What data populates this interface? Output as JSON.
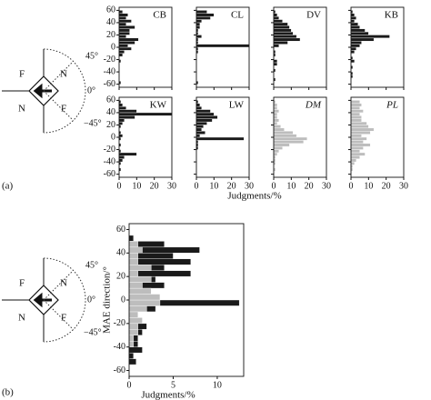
{
  "panel_labels": [
    "(a)",
    "(b)"
  ],
  "shared_xlabel": "Judgments/%",
  "diagrams": [
    {
      "labels": [
        "F",
        "N",
        "N",
        "F"
      ],
      "angles": [
        "45°",
        "0°",
        "−45°"
      ]
    },
    {
      "labels": [
        "F",
        "N",
        "N",
        "F"
      ],
      "angles": [
        "45°",
        "0°",
        "−45°"
      ]
    }
  ],
  "chart_data": [
    {
      "type": "histogram",
      "title": "CB",
      "title_italic": false,
      "color": "#1a1a1a",
      "show_yticklabels": true,
      "show_xticklabels": false,
      "bins": [
        -60,
        -55,
        -50,
        -45,
        -40,
        -35,
        -30,
        -25,
        -20,
        -15,
        -10,
        -5,
        0,
        5,
        10,
        15,
        20,
        25,
        30,
        35,
        40,
        45,
        50,
        55,
        60
      ],
      "values": [
        1,
        0,
        0,
        0,
        0,
        0,
        0,
        1,
        0,
        2,
        3,
        7,
        5,
        9,
        11,
        4,
        6,
        6,
        9,
        4,
        7,
        4,
        5,
        2
      ],
      "xlim": [
        0,
        30
      ],
      "xticks": [
        0,
        10,
        20,
        30
      ],
      "ylim": [
        -65,
        65
      ],
      "yticks": [
        60,
        40,
        20,
        0,
        -20,
        -40,
        -60
      ]
    },
    {
      "type": "histogram",
      "title": "CL",
      "title_italic": false,
      "color": "#1a1a1a",
      "show_yticklabels": false,
      "show_xticklabels": false,
      "bins": [
        -60,
        -55,
        -50,
        -45,
        -40,
        -35,
        -30,
        -25,
        -20,
        -15,
        -10,
        -5,
        0,
        5,
        10,
        15,
        20,
        25,
        30,
        35,
        40,
        45,
        50,
        55,
        60
      ],
      "values": [
        1,
        0,
        0,
        0,
        0,
        0,
        0,
        0,
        0,
        0,
        1,
        1,
        30,
        1,
        1,
        3,
        1,
        1,
        2,
        2,
        3,
        8,
        10,
        6
      ],
      "xlim": [
        0,
        30
      ],
      "xticks": [
        0,
        10,
        20,
        30
      ],
      "ylim": [
        -65,
        65
      ],
      "yticks": [
        60,
        40,
        20,
        0,
        -20,
        -40,
        -60
      ]
    },
    {
      "type": "histogram",
      "title": "DV",
      "title_italic": false,
      "color": "#1a1a1a",
      "show_yticklabels": false,
      "show_xticklabels": false,
      "bins": [
        -60,
        -55,
        -50,
        -45,
        -40,
        -35,
        -30,
        -25,
        -20,
        -15,
        -10,
        -5,
        0,
        5,
        10,
        15,
        20,
        25,
        30,
        35,
        40,
        45,
        50,
        55,
        60
      ],
      "values": [
        0,
        1,
        0,
        0,
        1,
        0,
        2,
        2,
        0,
        1,
        1,
        0,
        3,
        8,
        15,
        13,
        11,
        10,
        9,
        8,
        5,
        3,
        2,
        1
      ],
      "xlim": [
        0,
        30
      ],
      "xticks": [
        0,
        10,
        20,
        30
      ],
      "ylim": [
        -65,
        65
      ],
      "yticks": [
        60,
        40,
        20,
        0,
        -20,
        -40,
        -60
      ]
    },
    {
      "type": "histogram",
      "title": "KB",
      "title_italic": false,
      "color": "#1a1a1a",
      "show_yticklabels": false,
      "show_xticklabels": false,
      "bins": [
        -60,
        -55,
        -50,
        -45,
        -40,
        -35,
        -30,
        -25,
        -20,
        -15,
        -10,
        -5,
        0,
        5,
        10,
        15,
        20,
        25,
        30,
        35,
        40,
        45,
        50,
        55,
        60
      ],
      "values": [
        0,
        0,
        1,
        1,
        0,
        1,
        0,
        2,
        1,
        0,
        2,
        3,
        5,
        6,
        13,
        22,
        10,
        8,
        5,
        4,
        2,
        3,
        2,
        1
      ],
      "xlim": [
        0,
        30
      ],
      "xticks": [
        0,
        10,
        20,
        30
      ],
      "ylim": [
        -65,
        65
      ],
      "yticks": [
        60,
        40,
        20,
        0,
        -20,
        -40,
        -60
      ]
    },
    {
      "type": "histogram",
      "title": "KW",
      "title_italic": false,
      "color": "#1a1a1a",
      "show_yticklabels": true,
      "show_xticklabels": true,
      "bins": [
        -60,
        -55,
        -50,
        -45,
        -40,
        -35,
        -30,
        -25,
        -20,
        -15,
        -10,
        -5,
        0,
        5,
        10,
        15,
        20,
        25,
        30,
        35,
        40,
        45,
        50,
        55,
        60
      ],
      "values": [
        0,
        1,
        0,
        1,
        2,
        3,
        10,
        1,
        0,
        1,
        0,
        1,
        2,
        1,
        0,
        1,
        2,
        3,
        9,
        30,
        10,
        4,
        2,
        1
      ],
      "xlim": [
        0,
        30
      ],
      "xticks": [
        0,
        10,
        20,
        30
      ],
      "ylim": [
        -65,
        65
      ],
      "yticks": [
        60,
        40,
        20,
        0,
        -20,
        -40,
        -60
      ]
    },
    {
      "type": "histogram",
      "title": "LW",
      "title_italic": false,
      "color": "#1a1a1a",
      "show_yticklabels": false,
      "show_xticklabels": true,
      "bins": [
        -60,
        -55,
        -50,
        -45,
        -40,
        -35,
        -30,
        -25,
        -20,
        -15,
        -10,
        -5,
        0,
        5,
        10,
        15,
        20,
        25,
        30,
        35,
        40,
        45,
        50,
        55,
        60
      ],
      "values": [
        0,
        0,
        0,
        0,
        0,
        0,
        0,
        0,
        1,
        1,
        1,
        27,
        2,
        5,
        3,
        4,
        6,
        9,
        12,
        10,
        8,
        3,
        2,
        1
      ],
      "xlim": [
        0,
        30
      ],
      "xticks": [
        0,
        10,
        20,
        30
      ],
      "ylim": [
        -65,
        65
      ],
      "yticks": [
        60,
        40,
        20,
        0,
        -20,
        -40,
        -60
      ]
    },
    {
      "type": "histogram",
      "title": "DM",
      "title_italic": true,
      "color": "#bdbdbd",
      "show_yticklabels": false,
      "show_xticklabels": true,
      "bins": [
        -60,
        -55,
        -50,
        -45,
        -40,
        -35,
        -30,
        -25,
        -20,
        -15,
        -10,
        -5,
        0,
        5,
        10,
        15,
        20,
        25,
        30,
        35,
        40,
        45,
        50,
        55,
        60
      ],
      "values": [
        0,
        1,
        0,
        1,
        1,
        1,
        2,
        3,
        5,
        9,
        17,
        19,
        13,
        11,
        6,
        4,
        2,
        3,
        2,
        2,
        3,
        2,
        2,
        1
      ],
      "xlim": [
        0,
        30
      ],
      "xticks": [
        0,
        10,
        20,
        30
      ],
      "ylim": [
        -65,
        65
      ],
      "yticks": [
        60,
        40,
        20,
        0,
        -20,
        -40,
        -60
      ]
    },
    {
      "type": "histogram",
      "title": "PL",
      "title_italic": true,
      "color": "#bdbdbd",
      "show_yticklabels": false,
      "show_xticklabels": true,
      "bins": [
        -60,
        -55,
        -50,
        -45,
        -40,
        -35,
        -30,
        -25,
        -20,
        -15,
        -10,
        -5,
        0,
        5,
        10,
        15,
        20,
        25,
        30,
        35,
        40,
        45,
        50,
        55,
        60
      ],
      "values": [
        0,
        1,
        1,
        2,
        3,
        5,
        8,
        5,
        7,
        11,
        7,
        9,
        6,
        11,
        13,
        10,
        9,
        6,
        6,
        5,
        7,
        5,
        6,
        5
      ],
      "xlim": [
        0,
        30
      ],
      "xticks": [
        0,
        10,
        20,
        30
      ],
      "ylim": [
        -65,
        65
      ],
      "yticks": [
        60,
        40,
        20,
        0,
        -20,
        -40,
        -60
      ]
    },
    {
      "type": "histogram",
      "xlabel": "Judgments/%",
      "ylabel": "MAE direction/°",
      "show_yticklabels": true,
      "show_xticklabels": true,
      "bins": [
        -60,
        -55,
        -50,
        -45,
        -40,
        -35,
        -30,
        -25,
        -20,
        -15,
        -10,
        -5,
        0,
        5,
        10,
        15,
        20,
        25,
        30,
        35,
        40,
        45,
        50,
        55,
        60
      ],
      "series": [
        {
          "color": "#1a1a1a",
          "values": [
            0,
            0.8,
            0.5,
            1.5,
            1,
            1,
            1.5,
            2,
            0.5,
            1,
            3,
            12.5,
            1.5,
            2,
            4,
            3,
            7,
            4,
            7,
            5,
            8,
            4,
            0.5,
            0
          ]
        },
        {
          "color": "#bdbdbd",
          "values": [
            0,
            0,
            0,
            0,
            0.5,
            0.5,
            1,
            1,
            1.5,
            1,
            2,
            3.5,
            3.5,
            2.5,
            1.5,
            2.5,
            1,
            2.5,
            1,
            1,
            1.5,
            1,
            0,
            0
          ]
        }
      ],
      "xlim": [
        0,
        13
      ],
      "xticks": [
        0,
        5,
        10
      ],
      "ylim": [
        -65,
        65
      ],
      "yticks": [
        60,
        40,
        20,
        0,
        -20,
        -40,
        -60
      ]
    }
  ]
}
